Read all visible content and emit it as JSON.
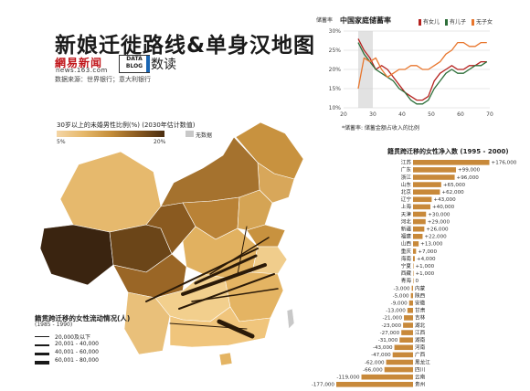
{
  "header": {
    "title": "新娘迁徙路线&单身汉地图",
    "logo_163_main": "網易新闻",
    "logo_163_sub": "news.163.com",
    "logo_datablog": "DATA BLOG",
    "shudu": "数读",
    "source": "数据来源：世界银行；意大利银行"
  },
  "map": {
    "scale_title": "30岁以上的未婚男性比例(%) (2030年估计数值)",
    "scale_low": "5%",
    "scale_high": "20%",
    "scale_colors": [
      "#f4d6a6",
      "#e6b86a",
      "#c58e3a",
      "#8a5a20",
      "#4a2d10"
    ],
    "no_data_label": "无数据",
    "flow_legend_title": "籍贯跨迁移的女性流动情况(人)",
    "flow_legend_sub": "(1985 - 1990)",
    "flow_legend": [
      {
        "label": "20,000及以下",
        "width": 1
      },
      {
        "label": "20,001 - 40,000",
        "width": 2
      },
      {
        "label": "40,001 - 60,000",
        "width": 3
      },
      {
        "label": "60,001 - 80,000",
        "width": 4
      }
    ]
  },
  "chart_data": [
    {
      "type": "line",
      "title": "中国家庭储蓄率",
      "ylabel": "储蓄率",
      "xlabel": "",
      "footnote": "*储蓄率: 储蓄金额占收入的比例",
      "xlim": [
        20,
        70
      ],
      "ylim": [
        10,
        30
      ],
      "x_ticks": [
        20,
        30,
        40,
        50,
        60,
        70
      ],
      "y_ticks": [
        10,
        15,
        20,
        25,
        30
      ],
      "y_tick_labels": [
        "10%",
        "15%",
        "20%",
        "25%",
        "30%"
      ],
      "series": [
        {
          "name": "有女儿",
          "color": "#b5221f",
          "x": [
            25,
            27,
            29,
            31,
            33,
            35,
            37,
            39,
            41,
            43,
            45,
            47,
            49,
            51,
            53,
            55,
            57,
            59,
            61,
            63,
            65,
            67,
            69
          ],
          "y": [
            28,
            25,
            23,
            20,
            21,
            20,
            18,
            16,
            14,
            13,
            12,
            12,
            13,
            17,
            19,
            20,
            21,
            20,
            20,
            21,
            21,
            22,
            22
          ]
        },
        {
          "name": "有儿子",
          "color": "#2e6f3a",
          "x": [
            25,
            27,
            29,
            31,
            33,
            35,
            37,
            39,
            41,
            43,
            45,
            47,
            49,
            51,
            53,
            55,
            57,
            59,
            61,
            63,
            65,
            67,
            69
          ],
          "y": [
            27,
            24,
            22,
            20,
            19,
            18,
            17,
            15,
            14,
            12,
            11,
            11,
            12,
            15,
            17,
            19,
            20,
            19,
            19,
            20,
            21,
            21,
            22
          ]
        },
        {
          "name": "无子女",
          "color": "#e8762d",
          "x": [
            25,
            27,
            29,
            31,
            33,
            35,
            37,
            39,
            41,
            43,
            45,
            47,
            49,
            51,
            53,
            55,
            57,
            59,
            61,
            63,
            65,
            67,
            69
          ],
          "y": [
            15,
            23,
            22,
            23,
            20,
            18,
            19,
            20,
            20,
            21,
            21,
            20,
            20,
            21,
            22,
            24,
            25,
            27,
            27,
            26,
            26,
            27,
            27
          ]
        }
      ]
    },
    {
      "type": "bar",
      "title": "籍贯跨迁移的女性净入数 (1995 - 2000)",
      "categories": [
        "江苏",
        "广东",
        "浙江",
        "山东",
        "北京",
        "辽宁",
        "上海",
        "天津",
        "河北",
        "新疆",
        "福建",
        "山西",
        "重庆",
        "海南",
        "宁夏",
        "西藏",
        "青海",
        "内蒙",
        "陕西",
        "安徽",
        "甘肃",
        "吉林",
        "湖北",
        "江西",
        "湖南",
        "河南",
        "广西",
        "黑龙江",
        "四川",
        "云南",
        "贵州"
      ],
      "values": [
        176000,
        99000,
        96000,
        65000,
        62000,
        43000,
        40000,
        30000,
        29000,
        26000,
        22000,
        13000,
        7000,
        4000,
        1000,
        1000,
        0,
        -3000,
        -5000,
        -9000,
        -13000,
        -21000,
        -23000,
        -27000,
        -31000,
        -43000,
        -47000,
        -62000,
        -66000,
        -119000,
        -177000
      ],
      "value_labels": [
        "+176,000",
        "+99,000",
        "+96,000",
        "+65,000",
        "+62,000",
        "+43,000",
        "+40,000",
        "+30,000",
        "+29,000",
        "+26,000",
        "+22,000",
        "+13,000",
        "+7,000",
        "+4,000",
        "+1,000",
        "+1,000",
        "0",
        "-3,000",
        "-5,000",
        "-9,000",
        "-13,000",
        "-21,000",
        "-23,000",
        "-27,000",
        "-31,000",
        "-43,000",
        "-47,000",
        "-62,000",
        "-66,000",
        "-119,000",
        "-177,000"
      ],
      "color": "#c8893a"
    }
  ]
}
